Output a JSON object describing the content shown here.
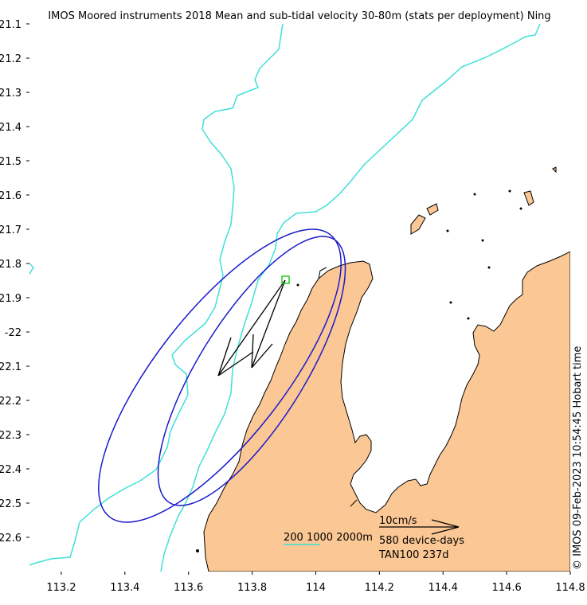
{
  "title": "IMOS Moored instruments 2018 Mean and sub-tidal velocity 30-80m (stats per deployment) Ning",
  "credit": "© IMOS 09-Feb-2023 10:54:45 Hobart time",
  "colors": {
    "land": "#fbc794",
    "coast": "#000000",
    "isobath": "#3fe0d8",
    "ellipse": "#1a1acc",
    "arrow": "#000000",
    "mooring": "#22cc22"
  },
  "chart_data": {
    "type": "map",
    "xlim": [
      113.1,
      114.8
    ],
    "ylim": [
      -22.7,
      -21.1
    ],
    "x_ticks": [
      {
        "value": 113.2,
        "label": "113.2"
      },
      {
        "value": 113.4,
        "label": "113.4"
      },
      {
        "value": 113.6,
        "label": "113.6"
      },
      {
        "value": 113.8,
        "label": "113.8"
      },
      {
        "value": 114.0,
        "label": "114"
      },
      {
        "value": 114.2,
        "label": "114.2"
      },
      {
        "value": 114.4,
        "label": "114.4"
      },
      {
        "value": 114.6,
        "label": "114.6"
      },
      {
        "value": 114.8,
        "label": "114.8"
      }
    ],
    "y_ticks": [
      {
        "value": -21.1,
        "label": "-21.1"
      },
      {
        "value": -21.2,
        "label": "-21.2"
      },
      {
        "value": -21.3,
        "label": "-21.3"
      },
      {
        "value": -21.4,
        "label": "-21.4"
      },
      {
        "value": -21.5,
        "label": "-21.5"
      },
      {
        "value": -21.6,
        "label": "-21.6"
      },
      {
        "value": -21.7,
        "label": "-21.7"
      },
      {
        "value": -21.8,
        "label": "-21.8"
      },
      {
        "value": -21.9,
        "label": "-21.9"
      },
      {
        "value": -22.0,
        "label": "-22"
      },
      {
        "value": -22.1,
        "label": "-22.1"
      },
      {
        "value": -22.2,
        "label": "-22.2"
      },
      {
        "value": -22.3,
        "label": "-22.3"
      },
      {
        "value": -22.4,
        "label": "-22.4"
      },
      {
        "value": -22.5,
        "label": "-22.5"
      },
      {
        "value": -22.6,
        "label": "-22.6"
      }
    ],
    "mooring": {
      "name": "TAN100",
      "lon": 113.91,
      "lat": -21.85,
      "days": 237
    },
    "legend": {
      "isobaths": "200 1000 2000m",
      "scale_label": "10cm/s",
      "device_days": "580 device-days",
      "deployment": "TAN100 237d"
    }
  }
}
